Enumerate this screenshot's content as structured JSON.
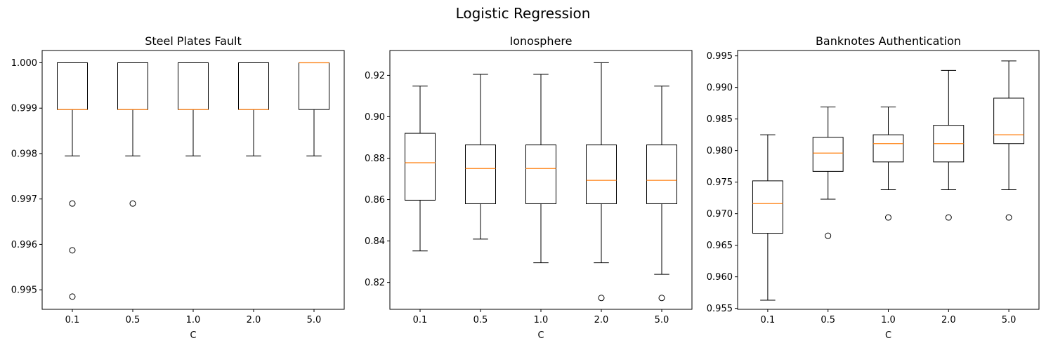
{
  "figure": {
    "title": "Logistic Regression"
  },
  "colors": {
    "median": "#ff7f0e",
    "box": "#000000",
    "background": "#ffffff"
  },
  "chart_data": [
    {
      "type": "box",
      "title": "Steel Plates Fault",
      "xlabel": "C",
      "ylabel": "",
      "categories": [
        "0.1",
        "0.5",
        "1.0",
        "2.0",
        "5.0"
      ],
      "ylim": [
        0.99457,
        1.00027
      ],
      "yticks": [
        0.995,
        0.996,
        0.997,
        0.998,
        0.999,
        1.0
      ],
      "ytick_labels": [
        "0.995",
        "0.996",
        "0.997",
        "0.998",
        "0.999",
        "1.000"
      ],
      "boxes": [
        {
          "whislo": 0.99795,
          "q1": 0.99897,
          "median": 0.99897,
          "q3": 1.0,
          "whishi": 1.0,
          "fliers": [
            0.9969,
            0.99587,
            0.99485
          ]
        },
        {
          "whislo": 0.99795,
          "q1": 0.99897,
          "median": 0.99897,
          "q3": 1.0,
          "whishi": 1.0,
          "fliers": [
            0.9969
          ]
        },
        {
          "whislo": 0.99795,
          "q1": 0.99897,
          "median": 0.99897,
          "q3": 1.0,
          "whishi": 1.0,
          "fliers": []
        },
        {
          "whislo": 0.99795,
          "q1": 0.99897,
          "median": 0.99897,
          "q3": 1.0,
          "whishi": 1.0,
          "fliers": []
        },
        {
          "whislo": 0.99795,
          "q1": 0.99897,
          "median": 1.0,
          "q3": 1.0,
          "whishi": 1.0,
          "fliers": []
        }
      ]
    },
    {
      "type": "box",
      "title": "Ionosphere",
      "xlabel": "C",
      "ylabel": "",
      "categories": [
        "0.1",
        "0.5",
        "1.0",
        "2.0",
        "5.0"
      ],
      "ylim": [
        0.807,
        0.932
      ],
      "yticks": [
        0.82,
        0.84,
        0.86,
        0.88,
        0.9,
        0.92
      ],
      "ytick_labels": [
        "0.82",
        "0.84",
        "0.86",
        "0.88",
        "0.90",
        "0.92"
      ],
      "boxes": [
        {
          "whislo": 0.8352,
          "q1": 0.8597,
          "median": 0.8778,
          "q3": 0.892,
          "whishi": 0.9148,
          "fliers": []
        },
        {
          "whislo": 0.8409,
          "q1": 0.858,
          "median": 0.875,
          "q3": 0.8864,
          "whishi": 0.9205,
          "fliers": []
        },
        {
          "whislo": 0.8295,
          "q1": 0.858,
          "median": 0.875,
          "q3": 0.8864,
          "whishi": 0.9205,
          "fliers": []
        },
        {
          "whislo": 0.8295,
          "q1": 0.858,
          "median": 0.8693,
          "q3": 0.8864,
          "whishi": 0.9261,
          "fliers": [
            0.8125
          ]
        },
        {
          "whislo": 0.8239,
          "q1": 0.858,
          "median": 0.8693,
          "q3": 0.8864,
          "whishi": 0.9148,
          "fliers": [
            0.8125
          ]
        }
      ]
    },
    {
      "type": "box",
      "title": "Banknotes Authentication",
      "xlabel": "C",
      "ylabel": "",
      "categories": [
        "0.1",
        "0.5",
        "1.0",
        "2.0",
        "5.0"
      ],
      "ylim": [
        0.95485,
        0.99585
      ],
      "yticks": [
        0.955,
        0.96,
        0.965,
        0.97,
        0.975,
        0.98,
        0.985,
        0.99,
        0.995
      ],
      "ytick_labels": [
        "0.955",
        "0.960",
        "0.965",
        "0.970",
        "0.975",
        "0.980",
        "0.985",
        "0.990",
        "0.995"
      ],
      "boxes": [
        {
          "whislo": 0.9563,
          "q1": 0.9669,
          "median": 0.9716,
          "q3": 0.9752,
          "whishi": 0.9825,
          "fliers": []
        },
        {
          "whislo": 0.9723,
          "q1": 0.9767,
          "median": 0.9796,
          "q3": 0.9821,
          "whishi": 0.9869,
          "fliers": [
            0.9665
          ]
        },
        {
          "whislo": 0.9738,
          "q1": 0.9782,
          "median": 0.9811,
          "q3": 0.9825,
          "whishi": 0.9869,
          "fliers": [
            0.9694
          ]
        },
        {
          "whislo": 0.9738,
          "q1": 0.9782,
          "median": 0.9811,
          "q3": 0.984,
          "whishi": 0.9927,
          "fliers": [
            0.9694
          ]
        },
        {
          "whislo": 0.9738,
          "q1": 0.9811,
          "median": 0.9825,
          "q3": 0.9883,
          "whishi": 0.9942,
          "fliers": [
            0.9694
          ]
        }
      ]
    }
  ]
}
